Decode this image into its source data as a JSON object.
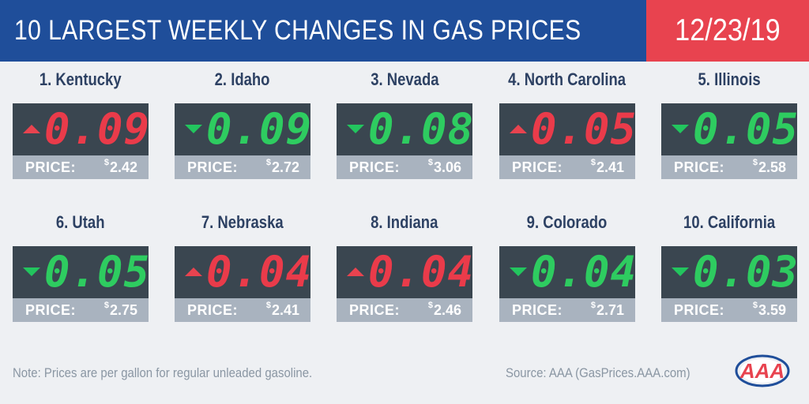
{
  "header": {
    "title": "10 LARGEST WEEKLY CHANGES IN GAS PRICES",
    "date": "12/23/19"
  },
  "colors": {
    "header_blue": "#1f4e9a",
    "header_red": "#e8434f",
    "display_bg": "#3a4650",
    "up_red": "#ea3b4a",
    "down_green": "#2ecc60",
    "price_bar": "#a9b3bf"
  },
  "cards": [
    {
      "name": "1. Kentucky",
      "direction": "up",
      "change": "0.09",
      "price_label": "PRICE:",
      "currency": "$",
      "price": "2.42"
    },
    {
      "name": "2. Idaho",
      "direction": "down",
      "change": "0.09",
      "price_label": "PRICE:",
      "currency": "$",
      "price": "2.72"
    },
    {
      "name": "3. Nevada",
      "direction": "down",
      "change": "0.08",
      "price_label": "PRICE:",
      "currency": "$",
      "price": "3.06"
    },
    {
      "name": "4. North Carolina",
      "direction": "up",
      "change": "0.05",
      "price_label": "PRICE:",
      "currency": "$",
      "price": "2.41"
    },
    {
      "name": "5. Illinois",
      "direction": "down",
      "change": "0.05",
      "price_label": "PRICE:",
      "currency": "$",
      "price": "2.58"
    },
    {
      "name": "6. Utah",
      "direction": "down",
      "change": "0.05",
      "price_label": "PRICE:",
      "currency": "$",
      "price": "2.75"
    },
    {
      "name": "7. Nebraska",
      "direction": "up",
      "change": "0.04",
      "price_label": "PRICE:",
      "currency": "$",
      "price": "2.41"
    },
    {
      "name": "8. Indiana",
      "direction": "up",
      "change": "0.04",
      "price_label": "PRICE:",
      "currency": "$",
      "price": "2.46"
    },
    {
      "name": "9. Colorado",
      "direction": "down",
      "change": "0.04",
      "price_label": "PRICE:",
      "currency": "$",
      "price": "2.71"
    },
    {
      "name": "10. California",
      "direction": "down",
      "change": "0.03",
      "price_label": "PRICE:",
      "currency": "$",
      "price": "3.59"
    }
  ],
  "footer": {
    "note": "Note: Prices are per gallon for regular unleaded gasoline.",
    "source": "Source: AAA (GasPrices.AAA.com)",
    "logo_text": "AAA",
    "logo_icon": "aaa-logo-icon"
  }
}
